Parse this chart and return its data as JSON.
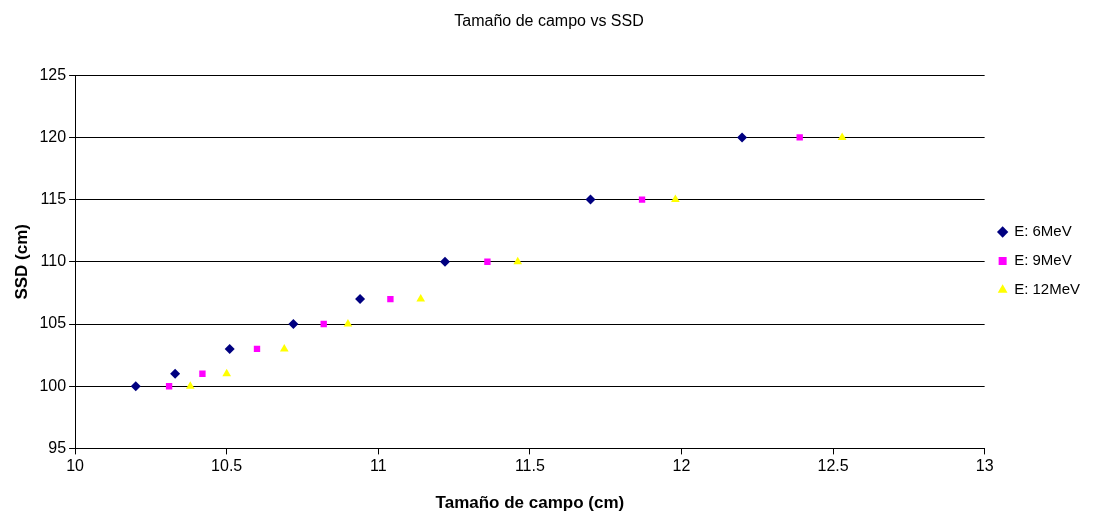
{
  "chart_data": {
    "type": "scatter",
    "title": "Tamaño de campo vs SSD",
    "xlabel": "Tamaño de campo (cm)",
    "ylabel": "SSD (cm)",
    "xlim": [
      10,
      13
    ],
    "xticks": [
      10,
      10.5,
      11,
      11.5,
      12,
      12.5,
      13
    ],
    "ylim": [
      95,
      125
    ],
    "yticks": [
      95,
      100,
      105,
      110,
      115,
      120,
      125
    ],
    "grid": "y",
    "legend": "right",
    "series": [
      {
        "name": "E: 6MeV",
        "color": "#000080",
        "marker": "diamond",
        "x": [
          10.2,
          10.33,
          10.51,
          10.72,
          10.94,
          11.22,
          11.7,
          12.2
        ],
        "values": [
          100,
          101,
          103,
          105,
          107,
          110,
          115,
          120
        ]
      },
      {
        "name": "E: 9MeV",
        "color": "#ff00ff",
        "marker": "square",
        "x": [
          10.31,
          10.42,
          10.6,
          10.82,
          11.04,
          11.36,
          11.87,
          12.39
        ],
        "values": [
          100,
          101,
          103,
          105,
          107,
          110,
          115,
          120
        ]
      },
      {
        "name": "E: 12MeV",
        "color": "#ffff00",
        "marker": "triangle",
        "x": [
          10.38,
          10.5,
          10.69,
          10.9,
          11.14,
          11.46,
          11.98,
          12.53
        ],
        "values": [
          100,
          101,
          103,
          105,
          107,
          110,
          115,
          120
        ]
      }
    ]
  }
}
